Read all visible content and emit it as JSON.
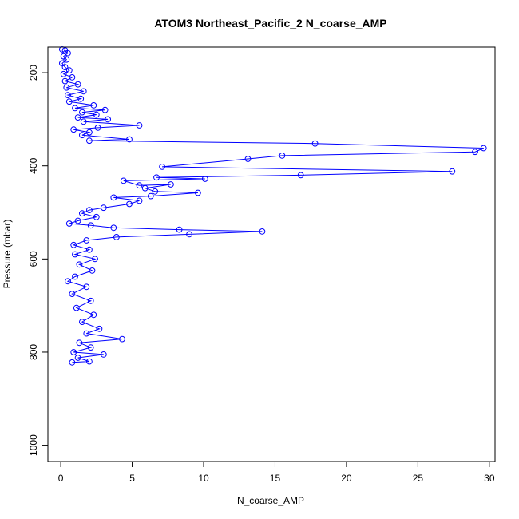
{
  "chart_data": {
    "type": "line",
    "title": "ATOM3 Northeast_Pacific_2 N_coarse_AMP",
    "xlabel": "N_coarse_AMP",
    "ylabel": "Pressure (mbar)",
    "x_ticks": [
      0,
      5,
      10,
      15,
      20,
      25,
      30
    ],
    "y_ticks": [
      200,
      400,
      600,
      800,
      1000
    ],
    "xlim": [
      -0.9,
      30.4
    ],
    "ylim": [
      1035,
      145
    ],
    "y_reversed": true,
    "grid": false,
    "legend": "none",
    "series_color": "#0000ff",
    "marker": "open-circle",
    "series": [
      {
        "values": [
          [
            0.1,
            150
          ],
          [
            0.3,
            152
          ],
          [
            0.5,
            158
          ],
          [
            0.2,
            165
          ],
          [
            0.4,
            172
          ],
          [
            0.1,
            180
          ],
          [
            0.3,
            188
          ],
          [
            0.6,
            195
          ],
          [
            0.2,
            203
          ],
          [
            0.8,
            210
          ],
          [
            0.3,
            218
          ],
          [
            1.2,
            225
          ],
          [
            0.4,
            232
          ],
          [
            1.6,
            240
          ],
          [
            0.5,
            248
          ],
          [
            1.4,
            256
          ],
          [
            0.6,
            262
          ],
          [
            2.3,
            270
          ],
          [
            1.0,
            276
          ],
          [
            3.1,
            280
          ],
          [
            1.5,
            285
          ],
          [
            2.5,
            290
          ],
          [
            1.2,
            296
          ],
          [
            3.3,
            300
          ],
          [
            1.6,
            305
          ],
          [
            5.5,
            313
          ],
          [
            2.6,
            318
          ],
          [
            0.9,
            322
          ],
          [
            2.0,
            328
          ],
          [
            1.5,
            334
          ],
          [
            4.8,
            343
          ],
          [
            2.0,
            346
          ],
          [
            17.8,
            352
          ],
          [
            29.6,
            362
          ],
          [
            29.0,
            370
          ],
          [
            15.5,
            378
          ],
          [
            13.1,
            385
          ],
          [
            7.1,
            402
          ],
          [
            27.4,
            412
          ],
          [
            16.8,
            420
          ],
          [
            6.7,
            425
          ],
          [
            10.1,
            428
          ],
          [
            4.4,
            432
          ],
          [
            5.5,
            442
          ],
          [
            7.7,
            440
          ],
          [
            5.9,
            448
          ],
          [
            6.6,
            455
          ],
          [
            9.6,
            458
          ],
          [
            6.3,
            465
          ],
          [
            3.7,
            468
          ],
          [
            5.5,
            475
          ],
          [
            4.8,
            482
          ],
          [
            3.0,
            490
          ],
          [
            2.0,
            495
          ],
          [
            1.5,
            502
          ],
          [
            2.5,
            510
          ],
          [
            1.2,
            518
          ],
          [
            0.6,
            524
          ],
          [
            2.1,
            528
          ],
          [
            3.7,
            533
          ],
          [
            8.3,
            537
          ],
          [
            14.1,
            541
          ],
          [
            9.0,
            547
          ],
          [
            3.9,
            553
          ],
          [
            1.8,
            560
          ],
          [
            0.9,
            570
          ],
          [
            2.0,
            580
          ],
          [
            1.0,
            590
          ],
          [
            2.4,
            600
          ],
          [
            1.3,
            612
          ],
          [
            2.2,
            625
          ],
          [
            1.0,
            638
          ],
          [
            0.5,
            648
          ],
          [
            1.8,
            660
          ],
          [
            0.8,
            675
          ],
          [
            2.1,
            690
          ],
          [
            1.1,
            705
          ],
          [
            2.3,
            720
          ],
          [
            1.5,
            735
          ],
          [
            2.7,
            750
          ],
          [
            1.8,
            760
          ],
          [
            4.3,
            772
          ],
          [
            1.3,
            780
          ],
          [
            2.1,
            790
          ],
          [
            0.9,
            800
          ],
          [
            3.0,
            805
          ],
          [
            1.2,
            812
          ],
          [
            2.0,
            820
          ],
          [
            0.8,
            822
          ]
        ]
      }
    ]
  }
}
